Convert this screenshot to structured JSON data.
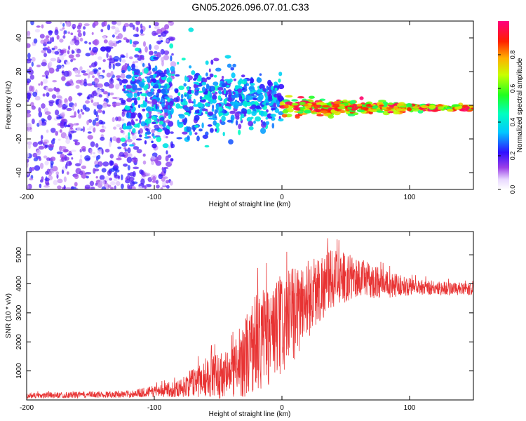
{
  "title": "GN05.2026.096.07.01.C33",
  "colors": {
    "snr_line": "#e83434",
    "spectro_background": "#ffffff",
    "axis": "#000000"
  },
  "chart_data": [
    {
      "type": "heatmap",
      "name": "spectrogram",
      "title": "GN05.2026.096.07.01.C33",
      "xlabel": "Height of straight line (km)",
      "ylabel": "Frequency (Hz)",
      "xlim": [
        -200,
        150
      ],
      "ylim": [
        -50,
        50
      ],
      "xticks": [
        -200,
        -100,
        0,
        100
      ],
      "yticks": [
        -40,
        -20,
        0,
        20,
        40
      ],
      "colorbar": {
        "label": "Normalized spectral amplitude",
        "range": [
          0,
          1
        ],
        "ticks": [
          0.0,
          0.2,
          0.4,
          0.6,
          0.8
        ],
        "tick_labels": [
          "0.0",
          "0.2",
          "0.4",
          "0.6",
          "0.8"
        ]
      },
      "description_regions": [
        {
          "x_range": [
            -200,
            -85
          ],
          "freq_spread": 50,
          "amplitude": [
            0.05,
            0.25
          ]
        },
        {
          "x_range": [
            -125,
            0
          ],
          "freq_spread": 15,
          "amplitude": [
            0.15,
            0.45
          ]
        },
        {
          "x_range": [
            0,
            150
          ],
          "freq_center": -1.5,
          "freq_spread": 3,
          "amplitude": [
            0.5,
            1.0
          ]
        }
      ]
    },
    {
      "type": "line",
      "name": "snr",
      "xlabel": "Height of straight line (km)",
      "ylabel": "SNR (10 * v/v)",
      "xlim": [
        -200,
        150
      ],
      "ylim": [
        0,
        5800
      ],
      "xticks": [
        -200,
        -100,
        0,
        100
      ],
      "yticks": [
        1000,
        2000,
        3000,
        4000,
        5000
      ],
      "series": [
        {
          "name": "SNR",
          "color": "#e83434",
          "profile_points": [
            {
              "x": -200,
              "y": 150,
              "spread": 100
            },
            {
              "x": -120,
              "y": 200,
              "spread": 120
            },
            {
              "x": -100,
              "y": 300,
              "spread": 200
            },
            {
              "x": -80,
              "y": 400,
              "spread": 300
            },
            {
              "x": -60,
              "y": 800,
              "spread": 700
            },
            {
              "x": -40,
              "y": 900,
              "spread": 900
            },
            {
              "x": -20,
              "y": 2000,
              "spread": 1800
            },
            {
              "x": 0,
              "y": 2500,
              "spread": 1800
            },
            {
              "x": 20,
              "y": 3500,
              "spread": 1400
            },
            {
              "x": 40,
              "y": 4200,
              "spread": 1000
            },
            {
              "x": 60,
              "y": 4200,
              "spread": 700
            },
            {
              "x": 80,
              "y": 4000,
              "spread": 500
            },
            {
              "x": 100,
              "y": 3900,
              "spread": 300
            },
            {
              "x": 150,
              "y": 3800,
              "spread": 200
            }
          ]
        }
      ]
    }
  ]
}
